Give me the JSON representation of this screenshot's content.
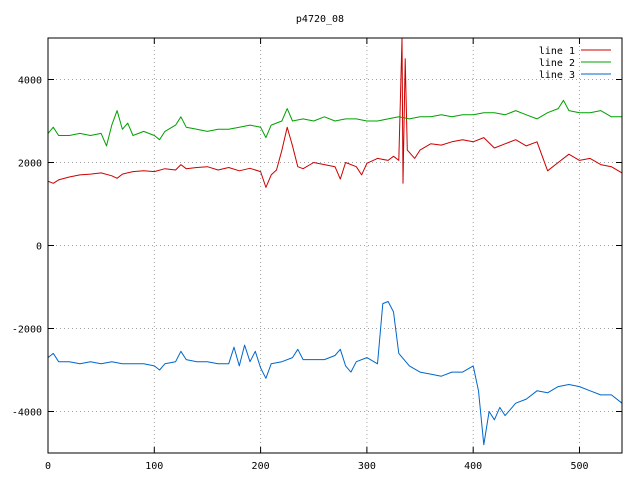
{
  "chart_data": {
    "type": "line",
    "title": "p4720_08",
    "xlabel": "",
    "ylabel": "",
    "xlim": [
      0,
      540
    ],
    "ylim": [
      -5000,
      5000
    ],
    "xticks": [
      0,
      100,
      200,
      300,
      400,
      500
    ],
    "yticks": [
      -4000,
      -2000,
      0,
      2000,
      4000
    ],
    "grid": true,
    "legend_position": "top-right",
    "series": [
      {
        "name": "line 1",
        "color": "#cc0000",
        "points": [
          [
            0,
            1550
          ],
          [
            5,
            1500
          ],
          [
            10,
            1580
          ],
          [
            20,
            1650
          ],
          [
            30,
            1700
          ],
          [
            40,
            1720
          ],
          [
            50,
            1750
          ],
          [
            60,
            1680
          ],
          [
            65,
            1620
          ],
          [
            70,
            1720
          ],
          [
            80,
            1780
          ],
          [
            90,
            1800
          ],
          [
            100,
            1780
          ],
          [
            110,
            1850
          ],
          [
            120,
            1820
          ],
          [
            125,
            1950
          ],
          [
            130,
            1850
          ],
          [
            140,
            1880
          ],
          [
            150,
            1900
          ],
          [
            160,
            1820
          ],
          [
            170,
            1880
          ],
          [
            180,
            1800
          ],
          [
            190,
            1860
          ],
          [
            200,
            1780
          ],
          [
            205,
            1400
          ],
          [
            210,
            1700
          ],
          [
            215,
            1820
          ],
          [
            220,
            2300
          ],
          [
            225,
            2850
          ],
          [
            230,
            2400
          ],
          [
            235,
            1900
          ],
          [
            240,
            1850
          ],
          [
            250,
            2000
          ],
          [
            260,
            1950
          ],
          [
            270,
            1900
          ],
          [
            275,
            1600
          ],
          [
            280,
            2000
          ],
          [
            290,
            1900
          ],
          [
            295,
            1700
          ],
          [
            300,
            1980
          ],
          [
            310,
            2100
          ],
          [
            320,
            2050
          ],
          [
            325,
            2150
          ],
          [
            330,
            2050
          ],
          [
            333,
            5000
          ],
          [
            334,
            1500
          ],
          [
            336,
            4500
          ],
          [
            338,
            2300
          ],
          [
            345,
            2100
          ],
          [
            350,
            2300
          ],
          [
            360,
            2450
          ],
          [
            370,
            2420
          ],
          [
            380,
            2500
          ],
          [
            390,
            2550
          ],
          [
            400,
            2500
          ],
          [
            410,
            2600
          ],
          [
            420,
            2350
          ],
          [
            430,
            2450
          ],
          [
            440,
            2550
          ],
          [
            450,
            2400
          ],
          [
            460,
            2500
          ],
          [
            470,
            1800
          ],
          [
            480,
            2000
          ],
          [
            490,
            2200
          ],
          [
            500,
            2050
          ],
          [
            510,
            2100
          ],
          [
            520,
            1950
          ],
          [
            530,
            1900
          ],
          [
            540,
            1750
          ]
        ]
      },
      {
        "name": "line 2",
        "color": "#00a000",
        "points": [
          [
            0,
            2700
          ],
          [
            5,
            2850
          ],
          [
            10,
            2650
          ],
          [
            20,
            2650
          ],
          [
            30,
            2700
          ],
          [
            40,
            2650
          ],
          [
            50,
            2700
          ],
          [
            55,
            2400
          ],
          [
            60,
            2900
          ],
          [
            65,
            3250
          ],
          [
            70,
            2800
          ],
          [
            75,
            2950
          ],
          [
            80,
            2650
          ],
          [
            90,
            2750
          ],
          [
            100,
            2650
          ],
          [
            105,
            2550
          ],
          [
            110,
            2750
          ],
          [
            120,
            2900
          ],
          [
            125,
            3100
          ],
          [
            130,
            2850
          ],
          [
            140,
            2800
          ],
          [
            150,
            2750
          ],
          [
            160,
            2800
          ],
          [
            170,
            2800
          ],
          [
            180,
            2850
          ],
          [
            190,
            2900
          ],
          [
            200,
            2850
          ],
          [
            205,
            2600
          ],
          [
            210,
            2900
          ],
          [
            220,
            3000
          ],
          [
            225,
            3300
          ],
          [
            230,
            3000
          ],
          [
            240,
            3050
          ],
          [
            250,
            3000
          ],
          [
            260,
            3100
          ],
          [
            270,
            3000
          ],
          [
            280,
            3050
          ],
          [
            290,
            3050
          ],
          [
            300,
            3000
          ],
          [
            310,
            3000
          ],
          [
            320,
            3050
          ],
          [
            330,
            3100
          ],
          [
            340,
            3050
          ],
          [
            350,
            3100
          ],
          [
            360,
            3100
          ],
          [
            370,
            3150
          ],
          [
            380,
            3100
          ],
          [
            390,
            3150
          ],
          [
            400,
            3150
          ],
          [
            410,
            3200
          ],
          [
            420,
            3200
          ],
          [
            430,
            3150
          ],
          [
            440,
            3250
          ],
          [
            450,
            3150
          ],
          [
            460,
            3050
          ],
          [
            470,
            3200
          ],
          [
            480,
            3300
          ],
          [
            485,
            3500
          ],
          [
            490,
            3250
          ],
          [
            500,
            3200
          ],
          [
            510,
            3200
          ],
          [
            520,
            3250
          ],
          [
            530,
            3100
          ],
          [
            540,
            3100
          ]
        ]
      },
      {
        "name": "line 3",
        "color": "#0066cc",
        "points": [
          [
            0,
            -2700
          ],
          [
            5,
            -2600
          ],
          [
            10,
            -2800
          ],
          [
            20,
            -2800
          ],
          [
            30,
            -2850
          ],
          [
            40,
            -2800
          ],
          [
            50,
            -2850
          ],
          [
            60,
            -2800
          ],
          [
            70,
            -2850
          ],
          [
            80,
            -2850
          ],
          [
            90,
            -2850
          ],
          [
            100,
            -2900
          ],
          [
            105,
            -3000
          ],
          [
            110,
            -2850
          ],
          [
            120,
            -2800
          ],
          [
            125,
            -2550
          ],
          [
            130,
            -2750
          ],
          [
            140,
            -2800
          ],
          [
            150,
            -2800
          ],
          [
            160,
            -2850
          ],
          [
            170,
            -2850
          ],
          [
            175,
            -2450
          ],
          [
            180,
            -2900
          ],
          [
            185,
            -2400
          ],
          [
            190,
            -2800
          ],
          [
            195,
            -2550
          ],
          [
            200,
            -2950
          ],
          [
            205,
            -3200
          ],
          [
            210,
            -2850
          ],
          [
            220,
            -2800
          ],
          [
            230,
            -2700
          ],
          [
            235,
            -2500
          ],
          [
            240,
            -2750
          ],
          [
            250,
            -2750
          ],
          [
            260,
            -2750
          ],
          [
            270,
            -2650
          ],
          [
            275,
            -2500
          ],
          [
            280,
            -2900
          ],
          [
            285,
            -3050
          ],
          [
            290,
            -2800
          ],
          [
            300,
            -2700
          ],
          [
            310,
            -2850
          ],
          [
            315,
            -1400
          ],
          [
            320,
            -1350
          ],
          [
            325,
            -1600
          ],
          [
            330,
            -2600
          ],
          [
            340,
            -2900
          ],
          [
            350,
            -3050
          ],
          [
            360,
            -3100
          ],
          [
            370,
            -3150
          ],
          [
            380,
            -3050
          ],
          [
            390,
            -3050
          ],
          [
            400,
            -2900
          ],
          [
            405,
            -3500
          ],
          [
            410,
            -4800
          ],
          [
            415,
            -4000
          ],
          [
            420,
            -4200
          ],
          [
            425,
            -3900
          ],
          [
            430,
            -4100
          ],
          [
            440,
            -3800
          ],
          [
            450,
            -3700
          ],
          [
            460,
            -3500
          ],
          [
            470,
            -3550
          ],
          [
            480,
            -3400
          ],
          [
            490,
            -3350
          ],
          [
            500,
            -3400
          ],
          [
            510,
            -3500
          ],
          [
            520,
            -3600
          ],
          [
            530,
            -3600
          ],
          [
            540,
            -3800
          ]
        ]
      }
    ]
  }
}
